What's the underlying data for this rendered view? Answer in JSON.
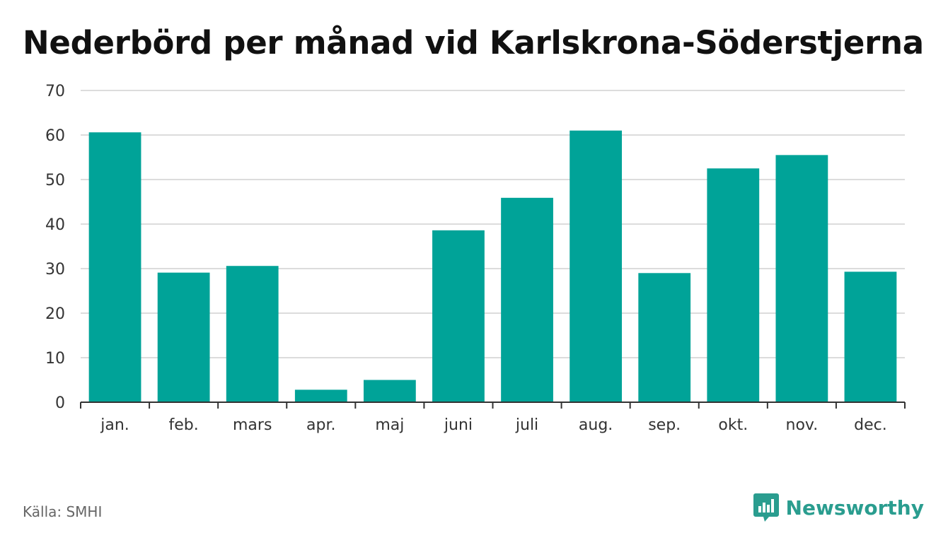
{
  "title": "Nederbörd per månad vid Karlskrona-Söderstjerna",
  "source": "Källa: SMHI",
  "brand": "Newsworthy",
  "colors": {
    "bar": "#00a398",
    "grid": "#dcdcdc",
    "axis": "#333333",
    "brand": "#2a9d8f"
  },
  "icons": {
    "brand_logo": "bar-chart-speech-bubble-icon"
  },
  "chart_data": {
    "type": "bar",
    "title": "Nederbörd per månad vid Karlskrona-Söderstjerna",
    "xlabel": "",
    "ylabel": "",
    "categories": [
      "jan.",
      "feb.",
      "mars",
      "apr.",
      "maj",
      "juni",
      "juli",
      "aug.",
      "sep.",
      "okt.",
      "nov.",
      "dec."
    ],
    "values": [
      60.6,
      29.1,
      30.6,
      2.8,
      5.0,
      38.6,
      45.9,
      61.0,
      29.0,
      52.5,
      55.5,
      29.3
    ],
    "ylim": [
      0,
      70
    ],
    "yticks": [
      0,
      10,
      20,
      30,
      40,
      50,
      60,
      70
    ],
    "grid": true,
    "legend": "none"
  }
}
